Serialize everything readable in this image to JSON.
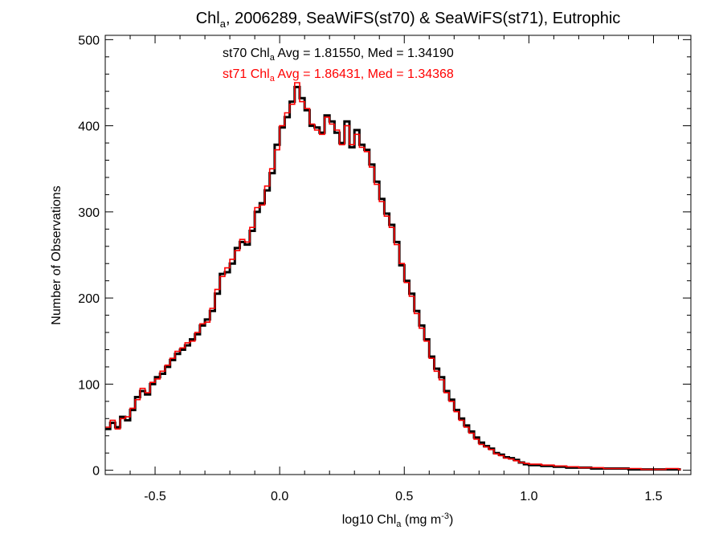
{
  "chart_data": {
    "type": "line",
    "step": true,
    "title": {
      "prefix": "Chl",
      "sub": "a",
      "suffix": ", 2006289, SeaWiFS(st70) & SeaWiFS(st71), Eutrophic"
    },
    "xlabel": {
      "prefix": "log10 Chl",
      "sub": "a",
      "unit_open": " (mg m",
      "sup": "-3",
      "unit_close": ")"
    },
    "ylabel": "Number of Observations",
    "xlim": [
      -0.7,
      1.65
    ],
    "ylim": [
      -5,
      505
    ],
    "xticks": [
      {
        "value": -0.5,
        "label": "-0.5"
      },
      {
        "value": 0.0,
        "label": "0.0"
      },
      {
        "value": 0.5,
        "label": "0.5"
      },
      {
        "value": 1.0,
        "label": "1.0"
      },
      {
        "value": 1.5,
        "label": "1.5"
      }
    ],
    "yticks": [
      {
        "value": 0,
        "label": "0"
      },
      {
        "value": 100,
        "label": "100"
      },
      {
        "value": 200,
        "label": "200"
      },
      {
        "value": 300,
        "label": "300"
      },
      {
        "value": 400,
        "label": "400"
      },
      {
        "value": 500,
        "label": "500"
      }
    ],
    "x_minor_step": 0.1,
    "y_minor_step": 20,
    "grid": false,
    "bin_width": 0.01,
    "annotations": [
      {
        "series": "st70",
        "prefix": "st70 Chl",
        "sub": "a",
        "suffix": " Avg = 1.81550, Med = 1.34190",
        "color": "#000000"
      },
      {
        "series": "st71",
        "prefix": "st71 Chl",
        "sub": "a",
        "suffix": " Avg = 1.86431, Med = 1.34368",
        "color": "#ff0000"
      }
    ],
    "series": [
      {
        "name": "st70",
        "color": "#000000",
        "x": [
          -0.7,
          -0.68,
          -0.66,
          -0.64,
          -0.62,
          -0.6,
          -0.58,
          -0.56,
          -0.54,
          -0.52,
          -0.5,
          -0.48,
          -0.46,
          -0.44,
          -0.42,
          -0.4,
          -0.38,
          -0.36,
          -0.34,
          -0.32,
          -0.3,
          -0.28,
          -0.26,
          -0.24,
          -0.22,
          -0.2,
          -0.18,
          -0.16,
          -0.14,
          -0.12,
          -0.1,
          -0.08,
          -0.06,
          -0.04,
          -0.02,
          0.0,
          0.02,
          0.04,
          0.06,
          0.08,
          0.1,
          0.12,
          0.14,
          0.16,
          0.18,
          0.2,
          0.22,
          0.24,
          0.26,
          0.28,
          0.3,
          0.32,
          0.34,
          0.36,
          0.38,
          0.4,
          0.42,
          0.44,
          0.46,
          0.48,
          0.5,
          0.52,
          0.54,
          0.56,
          0.58,
          0.6,
          0.62,
          0.64,
          0.66,
          0.68,
          0.7,
          0.72,
          0.74,
          0.76,
          0.78,
          0.8,
          0.82,
          0.84,
          0.86,
          0.88,
          0.9,
          0.92,
          0.94,
          0.96,
          0.98,
          1.0,
          1.05,
          1.1,
          1.15,
          1.2,
          1.25,
          1.3,
          1.35,
          1.4,
          1.45,
          1.5,
          1.55,
          1.6
        ],
        "y": [
          48,
          55,
          50,
          62,
          58,
          70,
          85,
          92,
          88,
          100,
          108,
          112,
          120,
          128,
          135,
          140,
          145,
          152,
          158,
          168,
          175,
          185,
          205,
          228,
          230,
          240,
          258,
          265,
          262,
          278,
          300,
          310,
          325,
          345,
          378,
          398,
          410,
          428,
          445,
          432,
          418,
          400,
          398,
          392,
          412,
          405,
          392,
          380,
          405,
          375,
          395,
          378,
          372,
          355,
          335,
          315,
          298,
          285,
          265,
          238,
          220,
          205,
          185,
          168,
          152,
          132,
          118,
          108,
          92,
          82,
          70,
          60,
          52,
          45,
          38,
          32,
          28,
          25,
          20,
          18,
          15,
          14,
          12,
          9,
          7,
          6,
          5,
          4,
          3,
          3,
          2,
          2,
          2,
          1,
          1,
          1,
          1,
          1
        ]
      },
      {
        "name": "st71",
        "color": "#ff0000",
        "x": [
          -0.7,
          -0.68,
          -0.66,
          -0.64,
          -0.62,
          -0.6,
          -0.58,
          -0.56,
          -0.54,
          -0.52,
          -0.5,
          -0.48,
          -0.46,
          -0.44,
          -0.42,
          -0.4,
          -0.38,
          -0.36,
          -0.34,
          -0.32,
          -0.3,
          -0.28,
          -0.26,
          -0.24,
          -0.22,
          -0.2,
          -0.18,
          -0.16,
          -0.14,
          -0.12,
          -0.1,
          -0.08,
          -0.06,
          -0.04,
          -0.02,
          0.0,
          0.02,
          0.04,
          0.06,
          0.08,
          0.1,
          0.12,
          0.14,
          0.16,
          0.18,
          0.2,
          0.22,
          0.24,
          0.26,
          0.28,
          0.3,
          0.32,
          0.34,
          0.36,
          0.38,
          0.4,
          0.42,
          0.44,
          0.46,
          0.48,
          0.5,
          0.52,
          0.54,
          0.56,
          0.58,
          0.6,
          0.62,
          0.64,
          0.66,
          0.68,
          0.7,
          0.72,
          0.74,
          0.76,
          0.78,
          0.8,
          0.82,
          0.84,
          0.86,
          0.88,
          0.9,
          0.92,
          0.94,
          0.96,
          0.98,
          1.0,
          1.05,
          1.1,
          1.15,
          1.2,
          1.25,
          1.3,
          1.35,
          1.4,
          1.45,
          1.5,
          1.55,
          1.6
        ],
        "y": [
          50,
          58,
          48,
          60,
          62,
          72,
          82,
          95,
          90,
          102,
          106,
          115,
          122,
          130,
          138,
          142,
          148,
          150,
          160,
          170,
          172,
          188,
          210,
          225,
          235,
          245,
          255,
          268,
          265,
          282,
          305,
          308,
          330,
          350,
          372,
          400,
          415,
          425,
          450,
          428,
          420,
          402,
          395,
          390,
          410,
          402,
          395,
          378,
          400,
          378,
          390,
          375,
          370,
          352,
          332,
          312,
          295,
          282,
          262,
          240,
          218,
          202,
          182,
          165,
          150,
          130,
          115,
          105,
          90,
          80,
          68,
          58,
          50,
          43,
          36,
          30,
          27,
          24,
          19,
          17,
          14,
          13,
          11,
          9,
          8,
          7,
          6,
          5,
          4,
          3,
          3,
          2,
          2,
          2,
          1,
          1,
          2,
          1
        ]
      }
    ]
  }
}
